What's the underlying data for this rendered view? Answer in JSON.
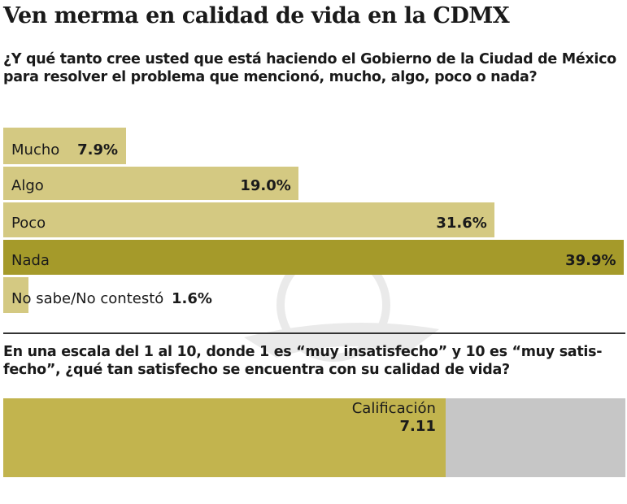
{
  "title": "Ven merma en calidad de vida en la CDMX",
  "question1": "¿Y qué tanto cree usted que está haciendo el Gobierno de la Ciudad de México para resolver el problema que mencionó, mucho, algo, poco o nada?",
  "question2": "En una escala del 1 al 10, donde 1 es “muy insatisfecho” y 10 es “muy satis-fecho”, ¿qué tan satisfecho se encuentra con su calidad de vida?",
  "colors": {
    "light": "#d4c982",
    "highlight": "#a59a2a",
    "score": "#c2b44e",
    "score_bg": "#c6c6c6"
  },
  "chart_data": [
    {
      "type": "bar",
      "orientation": "horizontal",
      "categories": [
        "Mucho",
        "Algo",
        "Poco",
        "Nada",
        "No sabe/No contestó"
      ],
      "values": [
        7.9,
        19.0,
        31.6,
        39.9,
        1.6
      ],
      "labels": [
        "7.9%",
        "19.0%",
        "31.6%",
        "39.9%",
        "1.6%"
      ],
      "highlight": "Nada"
    },
    {
      "type": "bar",
      "orientation": "horizontal",
      "label": "Calificación",
      "value": 7.11,
      "value_label": "7.11",
      "xlim": [
        0,
        10
      ]
    }
  ]
}
